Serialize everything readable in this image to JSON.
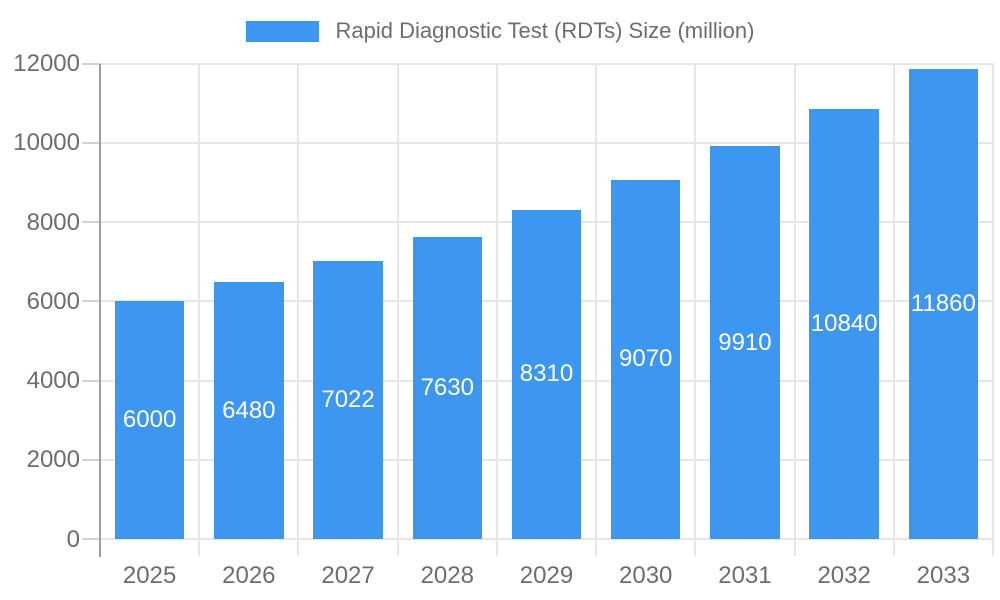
{
  "chart_data": {
    "type": "bar",
    "title": "Rapid Diagnostic Test (RDTs) Size (million)",
    "categories": [
      "2025",
      "2026",
      "2027",
      "2028",
      "2029",
      "2030",
      "2031",
      "2032",
      "2033"
    ],
    "values": [
      6000,
      6480,
      7022,
      7630,
      8310,
      9070,
      9910,
      10840,
      11860
    ],
    "series": [
      {
        "name": "Rapid Diagnostic Test (RDTs) Size (million)",
        "values": [
          6000,
          6480,
          7022,
          7630,
          8310,
          9070,
          9910,
          10840,
          11860
        ]
      }
    ],
    "xlabel": "",
    "ylabel": "",
    "ylim": [
      0,
      12000
    ],
    "y_ticks": [
      0,
      2000,
      4000,
      6000,
      8000,
      10000,
      12000
    ],
    "grid": true,
    "legend_position": "top-center",
    "bar_color": "#3D96F0",
    "value_label_color": "#ffffff",
    "axis_label_color": "#6d6d6d",
    "grid_color": "#e6e6e6",
    "tick_color": "#d2d2d2",
    "axis_line_color": "#9e9e9e",
    "background_color": "#ffffff"
  }
}
